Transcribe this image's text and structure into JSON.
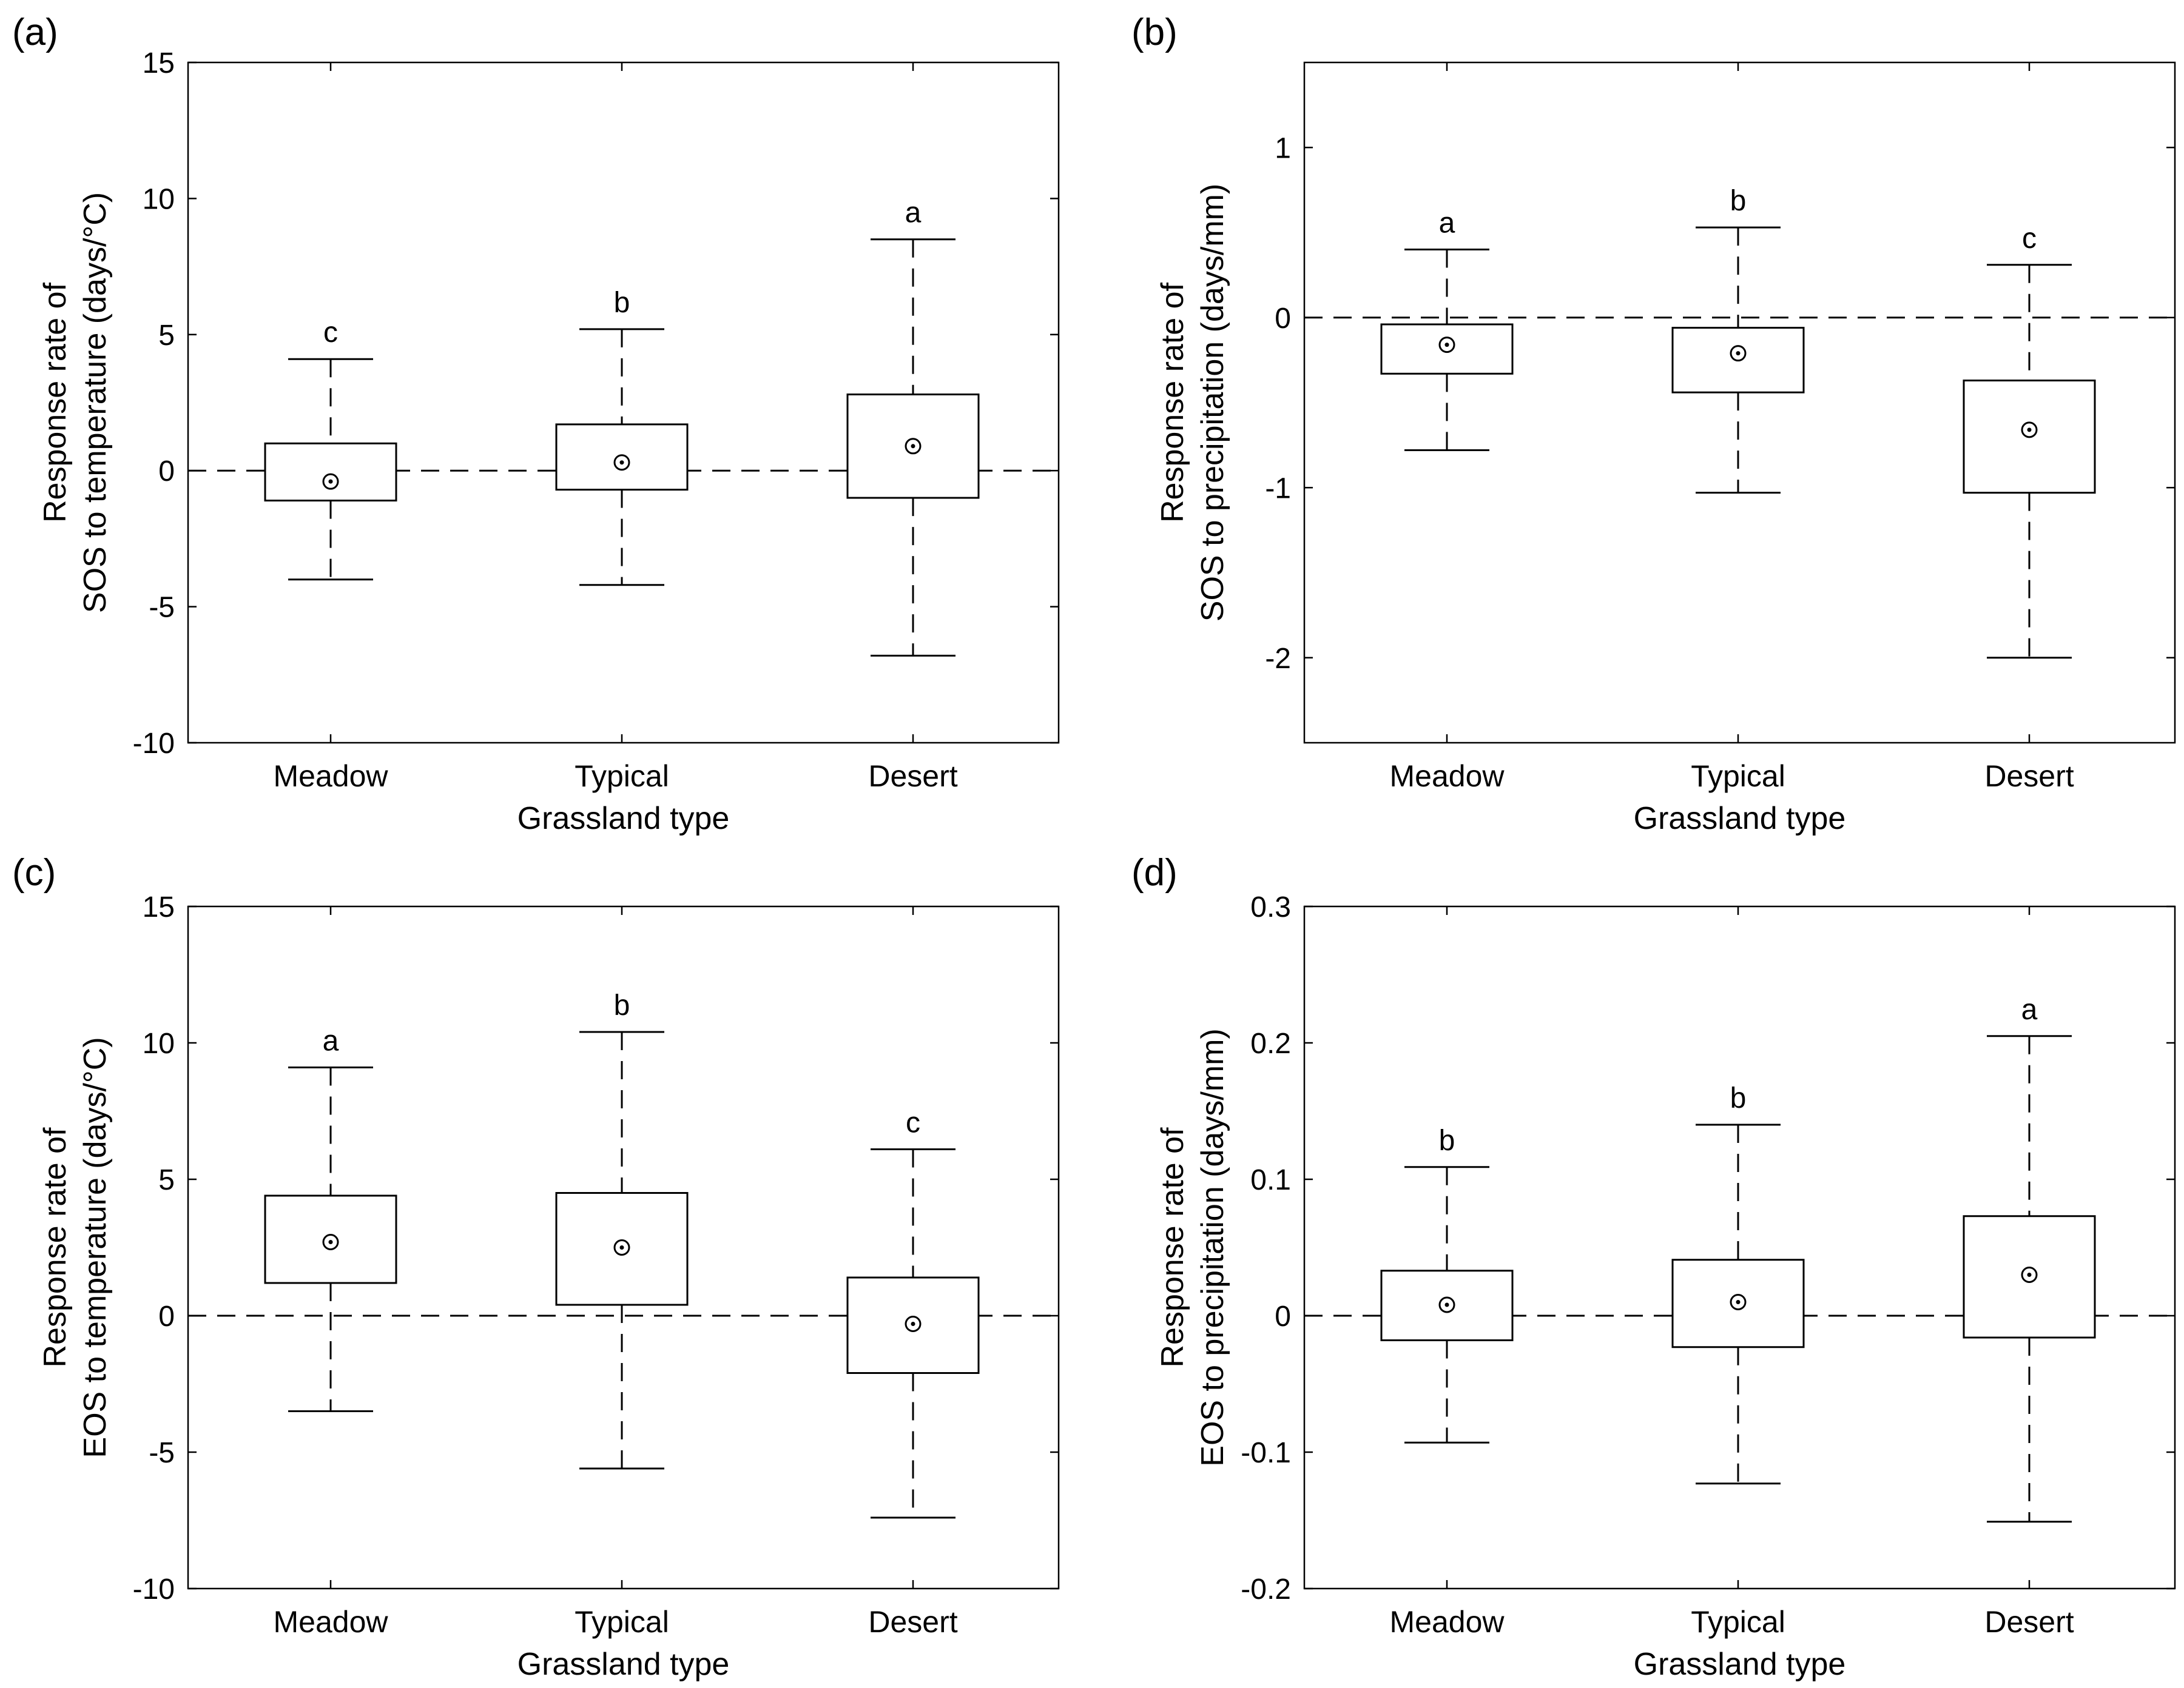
{
  "chart_data": [
    {
      "type": "box",
      "panel": "(a)",
      "ylabel_line1": "Response rate of",
      "ylabel_line2": "SOS to temperature (days/°C)",
      "xlabel": "Grassland type",
      "ylim": [
        -10,
        15
      ],
      "yticks": [
        -10,
        -5,
        0,
        5,
        10,
        15
      ],
      "tick_labels": [
        "-10",
        "-5",
        "0",
        "5",
        "10",
        "15"
      ],
      "reference_line": 0,
      "categories": [
        "Meadow",
        "Typical",
        "Desert"
      ],
      "boxes": [
        {
          "whisker_low": -4.0,
          "q1": -1.1,
          "q3": 1.0,
          "whisker_high": 4.1,
          "mean": -0.4,
          "letter": "c"
        },
        {
          "whisker_low": -4.2,
          "q1": -0.7,
          "q3": 1.7,
          "whisker_high": 5.2,
          "mean": 0.3,
          "letter": "b"
        },
        {
          "whisker_low": -6.8,
          "q1": -1.0,
          "q3": 2.8,
          "whisker_high": 8.5,
          "mean": 0.9,
          "letter": "a"
        }
      ]
    },
    {
      "type": "box",
      "panel": "(b)",
      "ylabel_line1": "Response rate of",
      "ylabel_line2": "SOS to precipitation (days/mm)",
      "xlabel": "Grassland type",
      "ylim": [
        -2.5,
        1.5
      ],
      "yticks": [
        -2,
        -1,
        0,
        1
      ],
      "tick_labels": [
        "-2",
        "-1",
        "0",
        "1"
      ],
      "reference_line": 0,
      "categories": [
        "Meadow",
        "Typical",
        "Desert"
      ],
      "boxes": [
        {
          "whisker_low": -0.78,
          "q1": -0.33,
          "q3": -0.04,
          "whisker_high": 0.4,
          "mean": -0.16,
          "letter": "a"
        },
        {
          "whisker_low": -1.03,
          "q1": -0.44,
          "q3": -0.06,
          "whisker_high": 0.53,
          "mean": -0.21,
          "letter": "b"
        },
        {
          "whisker_low": -2.0,
          "q1": -1.03,
          "q3": -0.37,
          "whisker_high": 0.31,
          "mean": -0.66,
          "letter": "c"
        }
      ]
    },
    {
      "type": "box",
      "panel": "(c)",
      "ylabel_line1": "Response rate of",
      "ylabel_line2": "EOS to temperature (days/°C)",
      "xlabel": "Grassland type",
      "ylim": [
        -10,
        15
      ],
      "yticks": [
        -10,
        -5,
        0,
        5,
        10,
        15
      ],
      "tick_labels": [
        "-10",
        "-5",
        "0",
        "5",
        "10",
        "15"
      ],
      "reference_line": 0,
      "categories": [
        "Meadow",
        "Typical",
        "Desert"
      ],
      "boxes": [
        {
          "whisker_low": -3.5,
          "q1": 1.2,
          "q3": 4.4,
          "whisker_high": 9.1,
          "mean": 2.7,
          "letter": "a"
        },
        {
          "whisker_low": -5.6,
          "q1": 0.4,
          "q3": 4.5,
          "whisker_high": 10.4,
          "mean": 2.5,
          "letter": "b"
        },
        {
          "whisker_low": -7.4,
          "q1": -2.1,
          "q3": 1.4,
          "whisker_high": 6.1,
          "mean": -0.3,
          "letter": "c"
        }
      ]
    },
    {
      "type": "box",
      "panel": "(d)",
      "ylabel_line1": "Response rate of",
      "ylabel_line2": "EOS to precipitation (days/mm)",
      "xlabel": "Grassland type",
      "ylim": [
        -0.2,
        0.3
      ],
      "yticks": [
        -0.2,
        -0.1,
        0,
        0.1,
        0.2,
        0.3
      ],
      "tick_labels": [
        "-0.2",
        "-0.1",
        "0",
        "0.1",
        "0.2",
        "0.3"
      ],
      "reference_line": 0,
      "categories": [
        "Meadow",
        "Typical",
        "Desert"
      ],
      "boxes": [
        {
          "whisker_low": -0.093,
          "q1": -0.018,
          "q3": 0.033,
          "whisker_high": 0.109,
          "mean": 0.008,
          "letter": "b"
        },
        {
          "whisker_low": -0.123,
          "q1": -0.023,
          "q3": 0.041,
          "whisker_high": 0.14,
          "mean": 0.01,
          "letter": "b"
        },
        {
          "whisker_low": -0.151,
          "q1": -0.016,
          "q3": 0.073,
          "whisker_high": 0.205,
          "mean": 0.03,
          "letter": "a"
        }
      ]
    }
  ]
}
